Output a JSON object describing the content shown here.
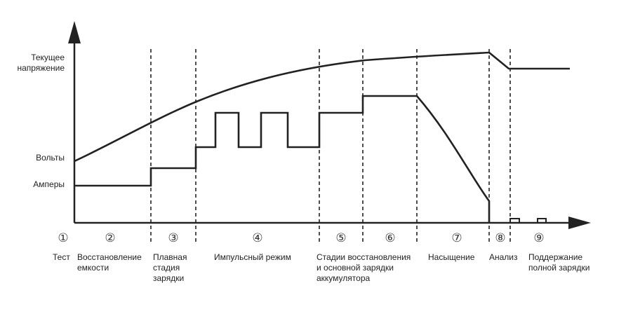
{
  "y_labels": {
    "current_voltage": "Текущее\nнапряжение",
    "volts": "Вольты",
    "amperes": "Амперы"
  },
  "stages": [
    {
      "number": "1",
      "label": "Тест"
    },
    {
      "number": "2",
      "label": "Восстановление\nемкости"
    },
    {
      "number": "3",
      "label": "Плавная\nстадия\nзарядки"
    },
    {
      "number": "4",
      "label": "Импульсный режим"
    },
    {
      "number": "5",
      "label": "Стадии восстановления\nи основной зарядки\nаккумулятора"
    },
    {
      "number": "6",
      "label": ""
    },
    {
      "number": "7",
      "label": "Насыщение"
    },
    {
      "number": "8",
      "label": "Анализ"
    },
    {
      "number": "9",
      "label": "Поддержание\nполной зарядки"
    }
  ],
  "colors": {
    "line": "#222222",
    "background": "#ffffff"
  }
}
